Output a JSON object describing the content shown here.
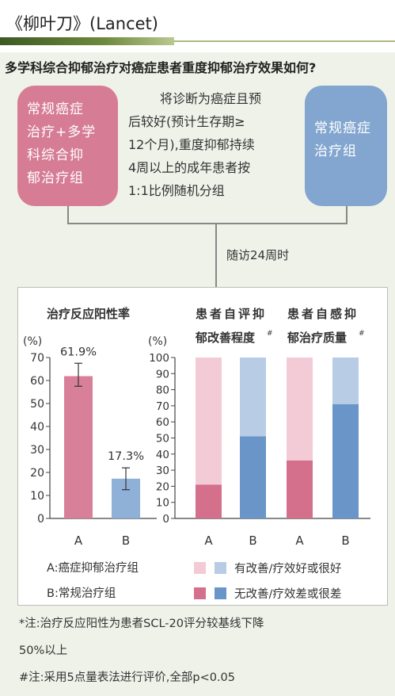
{
  "header": {
    "title": "《柳叶刀》(Lancet)"
  },
  "question": "多学科综合抑郁治疗对癌症患者重度抑郁治疗效果如何?",
  "group_a_box": {
    "lines": [
      "常规癌症",
      "治疗+多学",
      "科综合抑",
      "郁治疗组"
    ]
  },
  "group_b_box": {
    "lines": [
      "常规癌症",
      "治疗组"
    ]
  },
  "description": {
    "lines": [
      "将诊断为癌症且预",
      "后较好(预计生存期≥",
      "12个月),重度抑郁持续",
      "4周以上的成年患者按",
      "1:1比例随机分组"
    ]
  },
  "followup": "随访24周时",
  "colors": {
    "a_dark": "#d4708c",
    "a_light": "#f2cbd6",
    "b_dark": "#6995c9",
    "b_light": "#b8cde5"
  },
  "chart_data": [
    {
      "type": "bar",
      "title": "治疗反应阳性率",
      "title_mark": "*",
      "ylabel": "(%)",
      "ylim": [
        0,
        70
      ],
      "yticks": [
        0,
        10,
        20,
        30,
        40,
        50,
        60,
        70
      ],
      "categories": [
        "A",
        "B"
      ],
      "values": [
        61.9,
        17.3
      ],
      "value_labels": [
        "61.9%",
        "17.3%"
      ],
      "error_bars": [
        [
          57.5,
          67.5
        ],
        [
          12.5,
          22
        ]
      ]
    },
    {
      "type": "bar",
      "stacked": true,
      "ylabel": "(%)",
      "ylim": [
        0,
        100
      ],
      "yticks": [
        0,
        10,
        20,
        30,
        40,
        50,
        60,
        70,
        80,
        90,
        100
      ],
      "groups": [
        {
          "title_lines": [
            "患者自评抑",
            "郁改善程度"
          ],
          "title_mark": "#",
          "categories": [
            "A",
            "B"
          ],
          "no_improvement": [
            21,
            51
          ]
        },
        {
          "title_lines": [
            "患者自感抑",
            "郁治疗质量"
          ],
          "title_mark": "#",
          "categories": [
            "A",
            "B"
          ],
          "no_improvement": [
            36,
            71
          ]
        }
      ]
    }
  ],
  "legend": {
    "a_label": "A:癌症抑郁治疗组",
    "b_label": "B:常规治疗组",
    "light_label": "有改善/疗效好或很好",
    "dark_label": "无改善/疗效差或很差"
  },
  "notes": [
    "*注:治疗反应阳性为患者SCL-20评分较基线下降",
    "50%以上",
    "#注:采用5点量表法进行评价,全部p<0.05"
  ]
}
